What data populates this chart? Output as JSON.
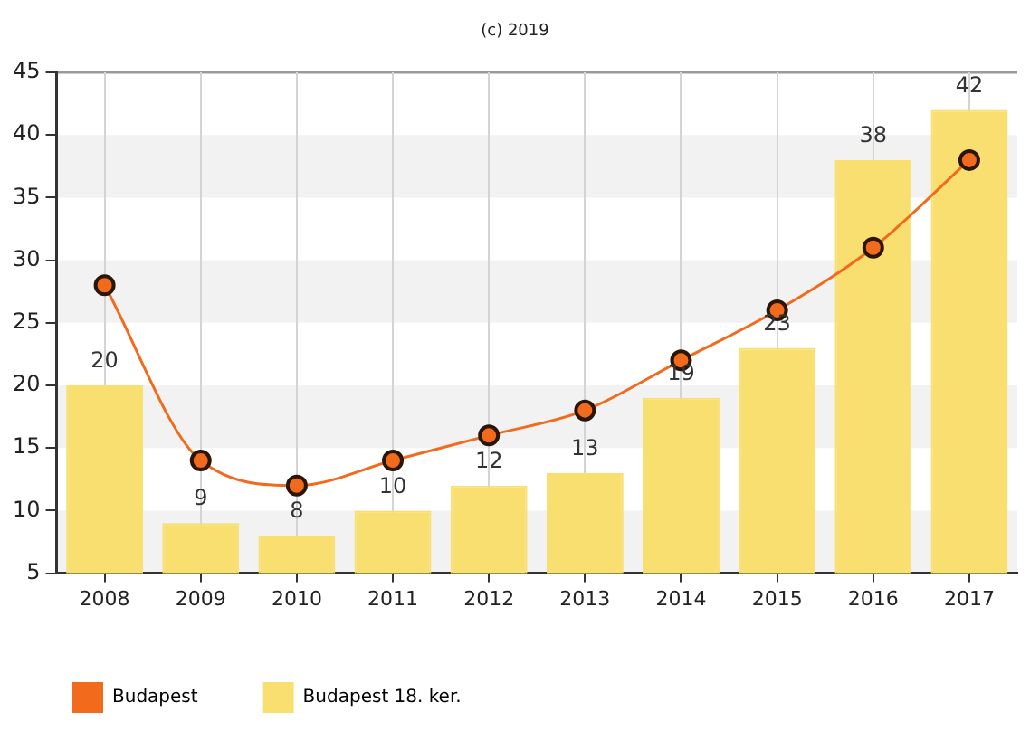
{
  "chart_data": {
    "type": "bar",
    "annotations": [
      "(c) 2019"
    ],
    "categories": [
      "2008",
      "2009",
      "2010",
      "2011",
      "2012",
      "2013",
      "2014",
      "2015",
      "2016",
      "2017"
    ],
    "series": [
      {
        "name": "Budapest",
        "type": "line",
        "color": "#f26b1d",
        "values": [
          28,
          14,
          12,
          14,
          16,
          18,
          22,
          26,
          31,
          38
        ]
      },
      {
        "name": "Budapest 18. ker.",
        "color": "#f9df6f",
        "values": [
          20,
          9,
          8,
          10,
          12,
          13,
          19,
          23,
          38,
          42
        ],
        "value_labels": [
          "20",
          "9",
          "8",
          "10",
          "12",
          "13",
          "19",
          "23",
          "38",
          "42"
        ]
      }
    ],
    "ylim": [
      5,
      45
    ],
    "yticks": [
      5,
      10,
      15,
      20,
      25,
      30,
      35,
      40,
      45
    ],
    "grid": true,
    "legend": "bottom",
    "marker": "circle",
    "line_style": "solid"
  }
}
